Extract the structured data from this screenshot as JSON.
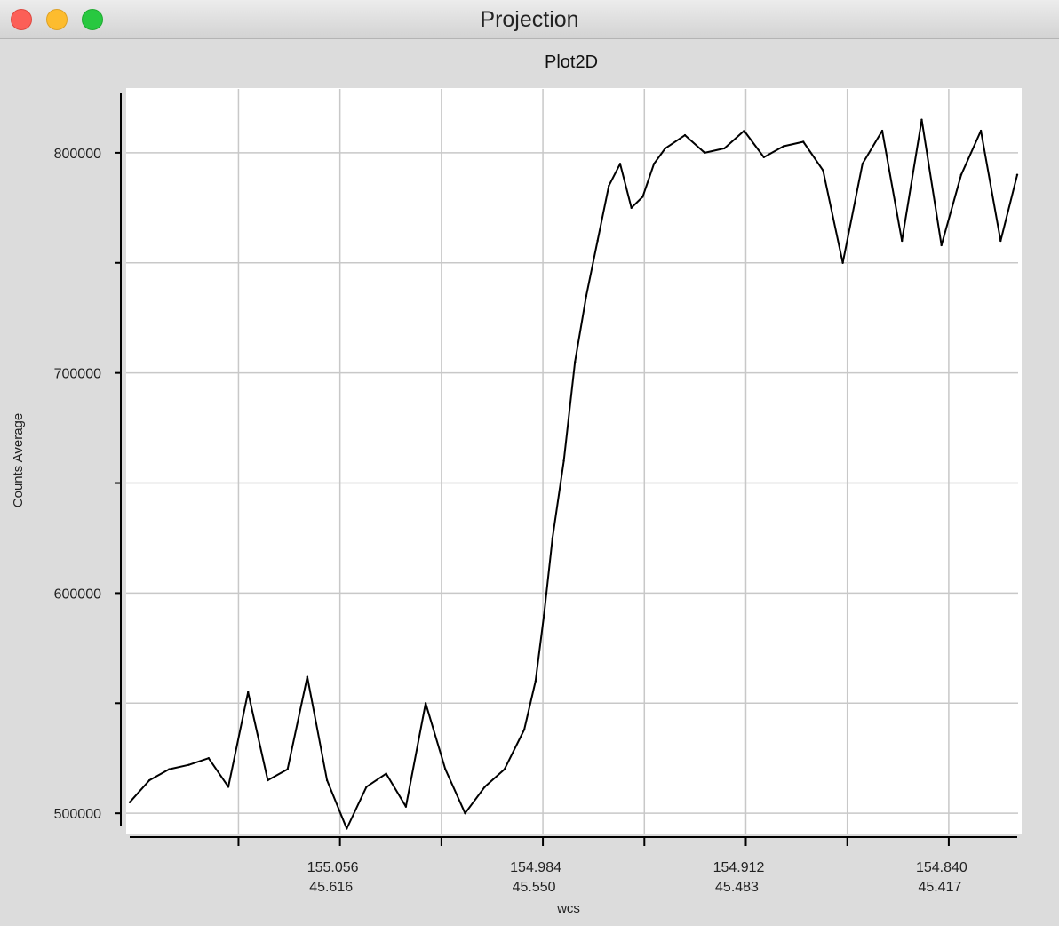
{
  "window": {
    "title": "Projection"
  },
  "chart_data": {
    "type": "line",
    "title": "Plot2D",
    "xlabel": "wcs",
    "ylabel": "Counts Average",
    "ylim": [
      492000,
      827000
    ],
    "grid": true,
    "xlim": [
      155.1306,
      154.8157
    ],
    "x_ticks": [
      {
        "x": 155.056,
        "label1": "155.056",
        "label2": "45.616"
      },
      {
        "x": 154.984,
        "label1": "154.984",
        "label2": "45.550"
      },
      {
        "x": 154.912,
        "label1": "154.912",
        "label2": "45.483"
      },
      {
        "x": 154.84,
        "label1": "154.840",
        "label2": "45.417"
      }
    ],
    "y_ticks": [
      {
        "y": 500000,
        "label": "500000"
      },
      {
        "y": 600000,
        "label": "600000"
      },
      {
        "y": 700000,
        "label": "700000"
      },
      {
        "y": 800000,
        "label": "800000"
      }
    ],
    "series": [
      {
        "color": "#000000",
        "x": [
          155.1306,
          155.1236,
          155.1166,
          155.1096,
          155.1026,
          155.0956,
          155.0886,
          155.0816,
          155.0746,
          155.0676,
          155.0606,
          155.0536,
          155.0466,
          155.0396,
          155.0326,
          155.0256,
          155.0186,
          155.0116,
          155.0046,
          154.9976,
          154.9906,
          154.9866,
          154.9836,
          154.9806,
          154.9766,
          154.9726,
          154.9686,
          154.9646,
          154.9606,
          154.9566,
          154.9526,
          154.9486,
          154.9446,
          154.9406,
          154.9336,
          154.9266,
          154.9196,
          154.9126,
          154.9056,
          154.8986,
          154.8916,
          154.8846,
          154.8776,
          154.8706,
          154.8636,
          154.8566,
          154.8496,
          154.8426,
          154.8356,
          154.8286,
          154.8216,
          154.8157
        ],
        "y": [
          505000,
          515000,
          520000,
          522000,
          525000,
          512000,
          555000,
          515000,
          520000,
          562000,
          515000,
          493000,
          512000,
          518000,
          503000,
          550000,
          520000,
          500000,
          512000,
          520000,
          538000,
          560000,
          590000,
          625000,
          660000,
          705000,
          735000,
          760000,
          785000,
          795000,
          775000,
          780000,
          795000,
          802000,
          808000,
          800000,
          802000,
          810000,
          798000,
          803000,
          805000,
          792000,
          750000,
          795000,
          810000,
          760000,
          815000,
          758000,
          790000,
          810000,
          760000,
          790000
        ]
      }
    ]
  }
}
